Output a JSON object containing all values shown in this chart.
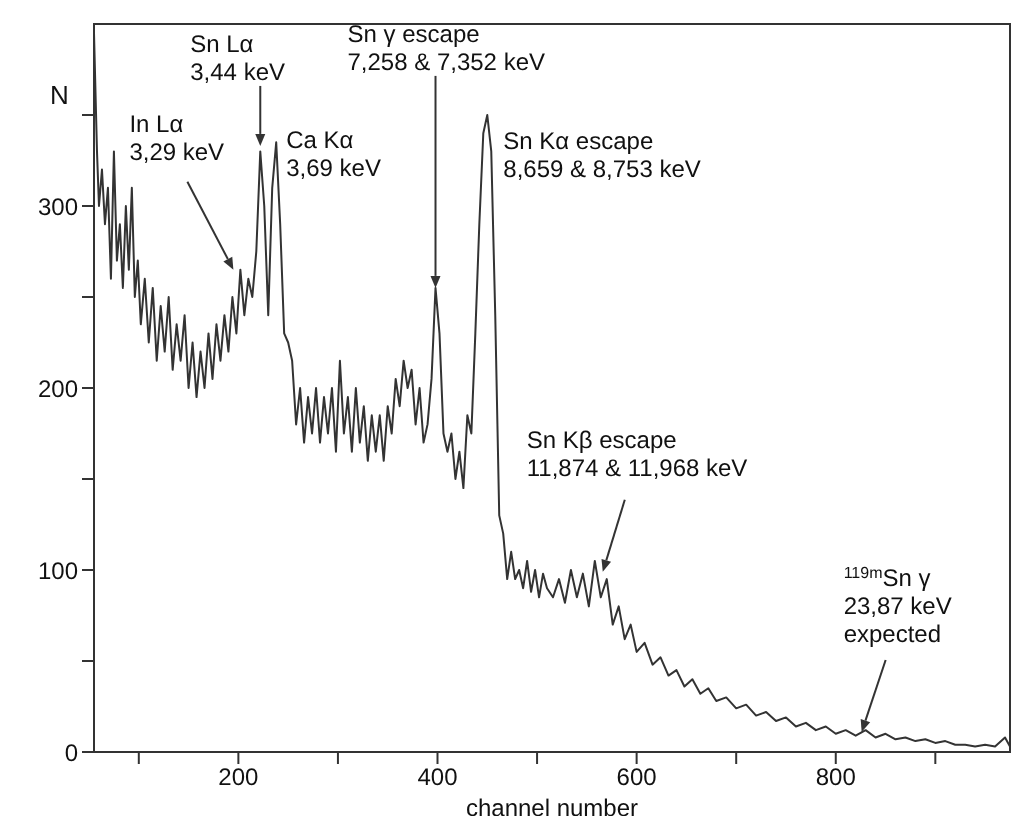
{
  "chart_data": {
    "type": "line",
    "xlabel": "channel number",
    "ylabel": "N",
    "x": [
      55,
      58,
      60,
      63,
      66,
      69,
      72,
      75,
      78,
      81,
      84,
      87,
      90,
      93,
      96,
      99,
      102,
      106,
      110,
      114,
      118,
      122,
      126,
      130,
      134,
      138,
      142,
      146,
      150,
      154,
      158,
      162,
      166,
      170,
      174,
      178,
      182,
      186,
      190,
      194,
      198,
      202,
      206,
      210,
      214,
      218,
      222,
      226,
      230,
      234,
      238,
      242,
      246,
      250,
      254,
      258,
      262,
      266,
      270,
      274,
      278,
      282,
      286,
      290,
      294,
      298,
      302,
      306,
      310,
      314,
      318,
      322,
      326,
      330,
      334,
      338,
      342,
      346,
      350,
      354,
      358,
      362,
      366,
      370,
      374,
      378,
      382,
      386,
      390,
      394,
      398,
      402,
      406,
      410,
      414,
      418,
      422,
      426,
      430,
      434,
      438,
      442,
      446,
      450,
      454,
      458,
      462,
      466,
      470,
      474,
      478,
      482,
      486,
      490,
      494,
      498,
      502,
      506,
      510,
      516,
      522,
      528,
      534,
      540,
      546,
      552,
      558,
      564,
      570,
      576,
      582,
      588,
      594,
      600,
      608,
      616,
      624,
      632,
      640,
      648,
      656,
      664,
      672,
      680,
      690,
      700,
      710,
      720,
      730,
      740,
      750,
      760,
      770,
      780,
      790,
      800,
      810,
      820,
      830,
      840,
      850,
      860,
      870,
      880,
      890,
      900,
      910,
      920,
      930,
      940,
      950,
      960,
      970,
      975
    ],
    "series": [
      {
        "color": "#333333",
        "values": [
          395,
          330,
          300,
          320,
          290,
          310,
          260,
          330,
          270,
          290,
          255,
          300,
          265,
          310,
          250,
          270,
          235,
          260,
          225,
          255,
          215,
          245,
          220,
          250,
          210,
          235,
          215,
          240,
          200,
          225,
          195,
          220,
          200,
          230,
          205,
          235,
          215,
          240,
          220,
          250,
          230,
          265,
          240,
          260,
          250,
          275,
          330,
          300,
          240,
          310,
          335,
          290,
          230,
          225,
          215,
          180,
          200,
          170,
          195,
          175,
          200,
          170,
          195,
          175,
          200,
          165,
          215,
          175,
          195,
          165,
          200,
          170,
          190,
          160,
          185,
          165,
          185,
          160,
          190,
          175,
          205,
          190,
          215,
          200,
          210,
          180,
          200,
          170,
          180,
          205,
          255,
          230,
          175,
          165,
          175,
          150,
          165,
          145,
          185,
          175,
          230,
          290,
          340,
          350,
          330,
          240,
          130,
          120,
          95,
          110,
          95,
          100,
          90,
          105,
          88,
          100,
          85,
          98,
          90,
          85,
          95,
          82,
          100,
          85,
          98,
          80,
          105,
          85,
          95,
          70,
          80,
          62,
          70,
          55,
          60,
          48,
          52,
          42,
          45,
          36,
          40,
          32,
          35,
          28,
          30,
          24,
          26,
          20,
          22,
          17,
          19,
          14,
          16,
          12,
          14,
          10,
          12,
          9,
          12,
          8,
          10,
          7,
          8,
          6,
          7,
          5,
          6,
          4,
          4,
          3,
          4,
          3,
          8,
          3
        ]
      }
    ],
    "xlim": [
      55,
      975
    ],
    "ylim": [
      0,
      400
    ],
    "xticks": [
      {
        "value": 100,
        "label": null
      },
      200,
      {
        "value": 300,
        "label": null
      },
      400,
      {
        "value": 500,
        "label": null
      },
      600,
      {
        "value": 700,
        "label": null
      },
      800,
      {
        "value": 900,
        "label": null
      }
    ],
    "yticks": [
      0,
      {
        "value": 50,
        "label": null
      },
      100,
      {
        "value": 150,
        "label": null
      },
      200,
      {
        "value": 250,
        "label": null
      },
      300,
      {
        "value": 350,
        "label": null
      }
    ],
    "marker": "none",
    "line_style": "solid",
    "annotations": [
      {
        "text": "In Lα\n3,29 keV",
        "x": 195,
        "y": 265
      },
      {
        "text": "Sn Lα\n3,44 keV",
        "x": 222,
        "y": 333
      },
      {
        "text": "Ca Kα\n3,69 keV",
        "x": 238,
        "y": 335
      },
      {
        "text": "Sn γ escape\n7,258 & 7,352 keV",
        "x": 398,
        "y": 255
      },
      {
        "text": "Sn Kα escape\n8,659 & 8,753 keV",
        "x": 450,
        "y": 350
      },
      {
        "text": "Sn Kβ escape\n11,874 & 11,968 keV",
        "x": 566,
        "y": 99
      },
      {
        "text": "$^{119m}$Sn γ\n23,87 keV\nexpected",
        "x": 826,
        "y": 11
      }
    ]
  }
}
